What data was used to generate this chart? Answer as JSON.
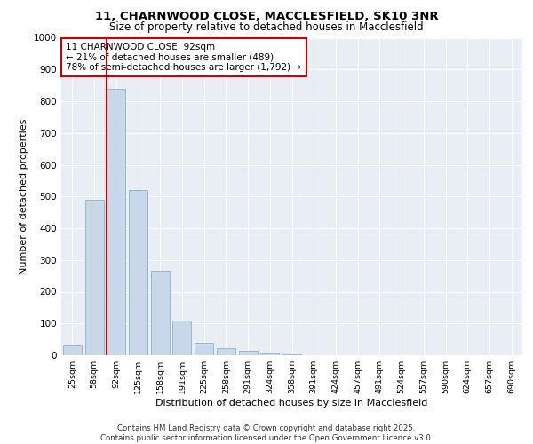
{
  "title_line1": "11, CHARNWOOD CLOSE, MACCLESFIELD, SK10 3NR",
  "title_line2": "Size of property relative to detached houses in Macclesfield",
  "xlabel": "Distribution of detached houses by size in Macclesfield",
  "ylabel": "Number of detached properties",
  "categories": [
    "25sqm",
    "58sqm",
    "92sqm",
    "125sqm",
    "158sqm",
    "191sqm",
    "225sqm",
    "258sqm",
    "291sqm",
    "324sqm",
    "358sqm",
    "391sqm",
    "424sqm",
    "457sqm",
    "491sqm",
    "524sqm",
    "557sqm",
    "590sqm",
    "624sqm",
    "657sqm",
    "690sqm"
  ],
  "values": [
    30,
    490,
    840,
    520,
    265,
    108,
    40,
    22,
    15,
    5,
    2,
    1,
    0,
    0,
    0,
    0,
    0,
    0,
    0,
    0,
    0
  ],
  "bar_color": "#c8d8e8",
  "bar_edgecolor": "#7aaac8",
  "vline_x": 2,
  "vline_color": "#cc0000",
  "annotation_text": "11 CHARNWOOD CLOSE: 92sqm\n← 21% of detached houses are smaller (489)\n78% of semi-detached houses are larger (1,792) →",
  "annotation_box_color": "#cc0000",
  "background_color": "#e8eef4",
  "grid_color": "#ffffff",
  "footer_text": "Contains HM Land Registry data © Crown copyright and database right 2025.\nContains public sector information licensed under the Open Government Licence v3.0.",
  "ylim": [
    0,
    1000
  ],
  "yticks": [
    0,
    100,
    200,
    300,
    400,
    500,
    600,
    700,
    800,
    900,
    1000
  ]
}
